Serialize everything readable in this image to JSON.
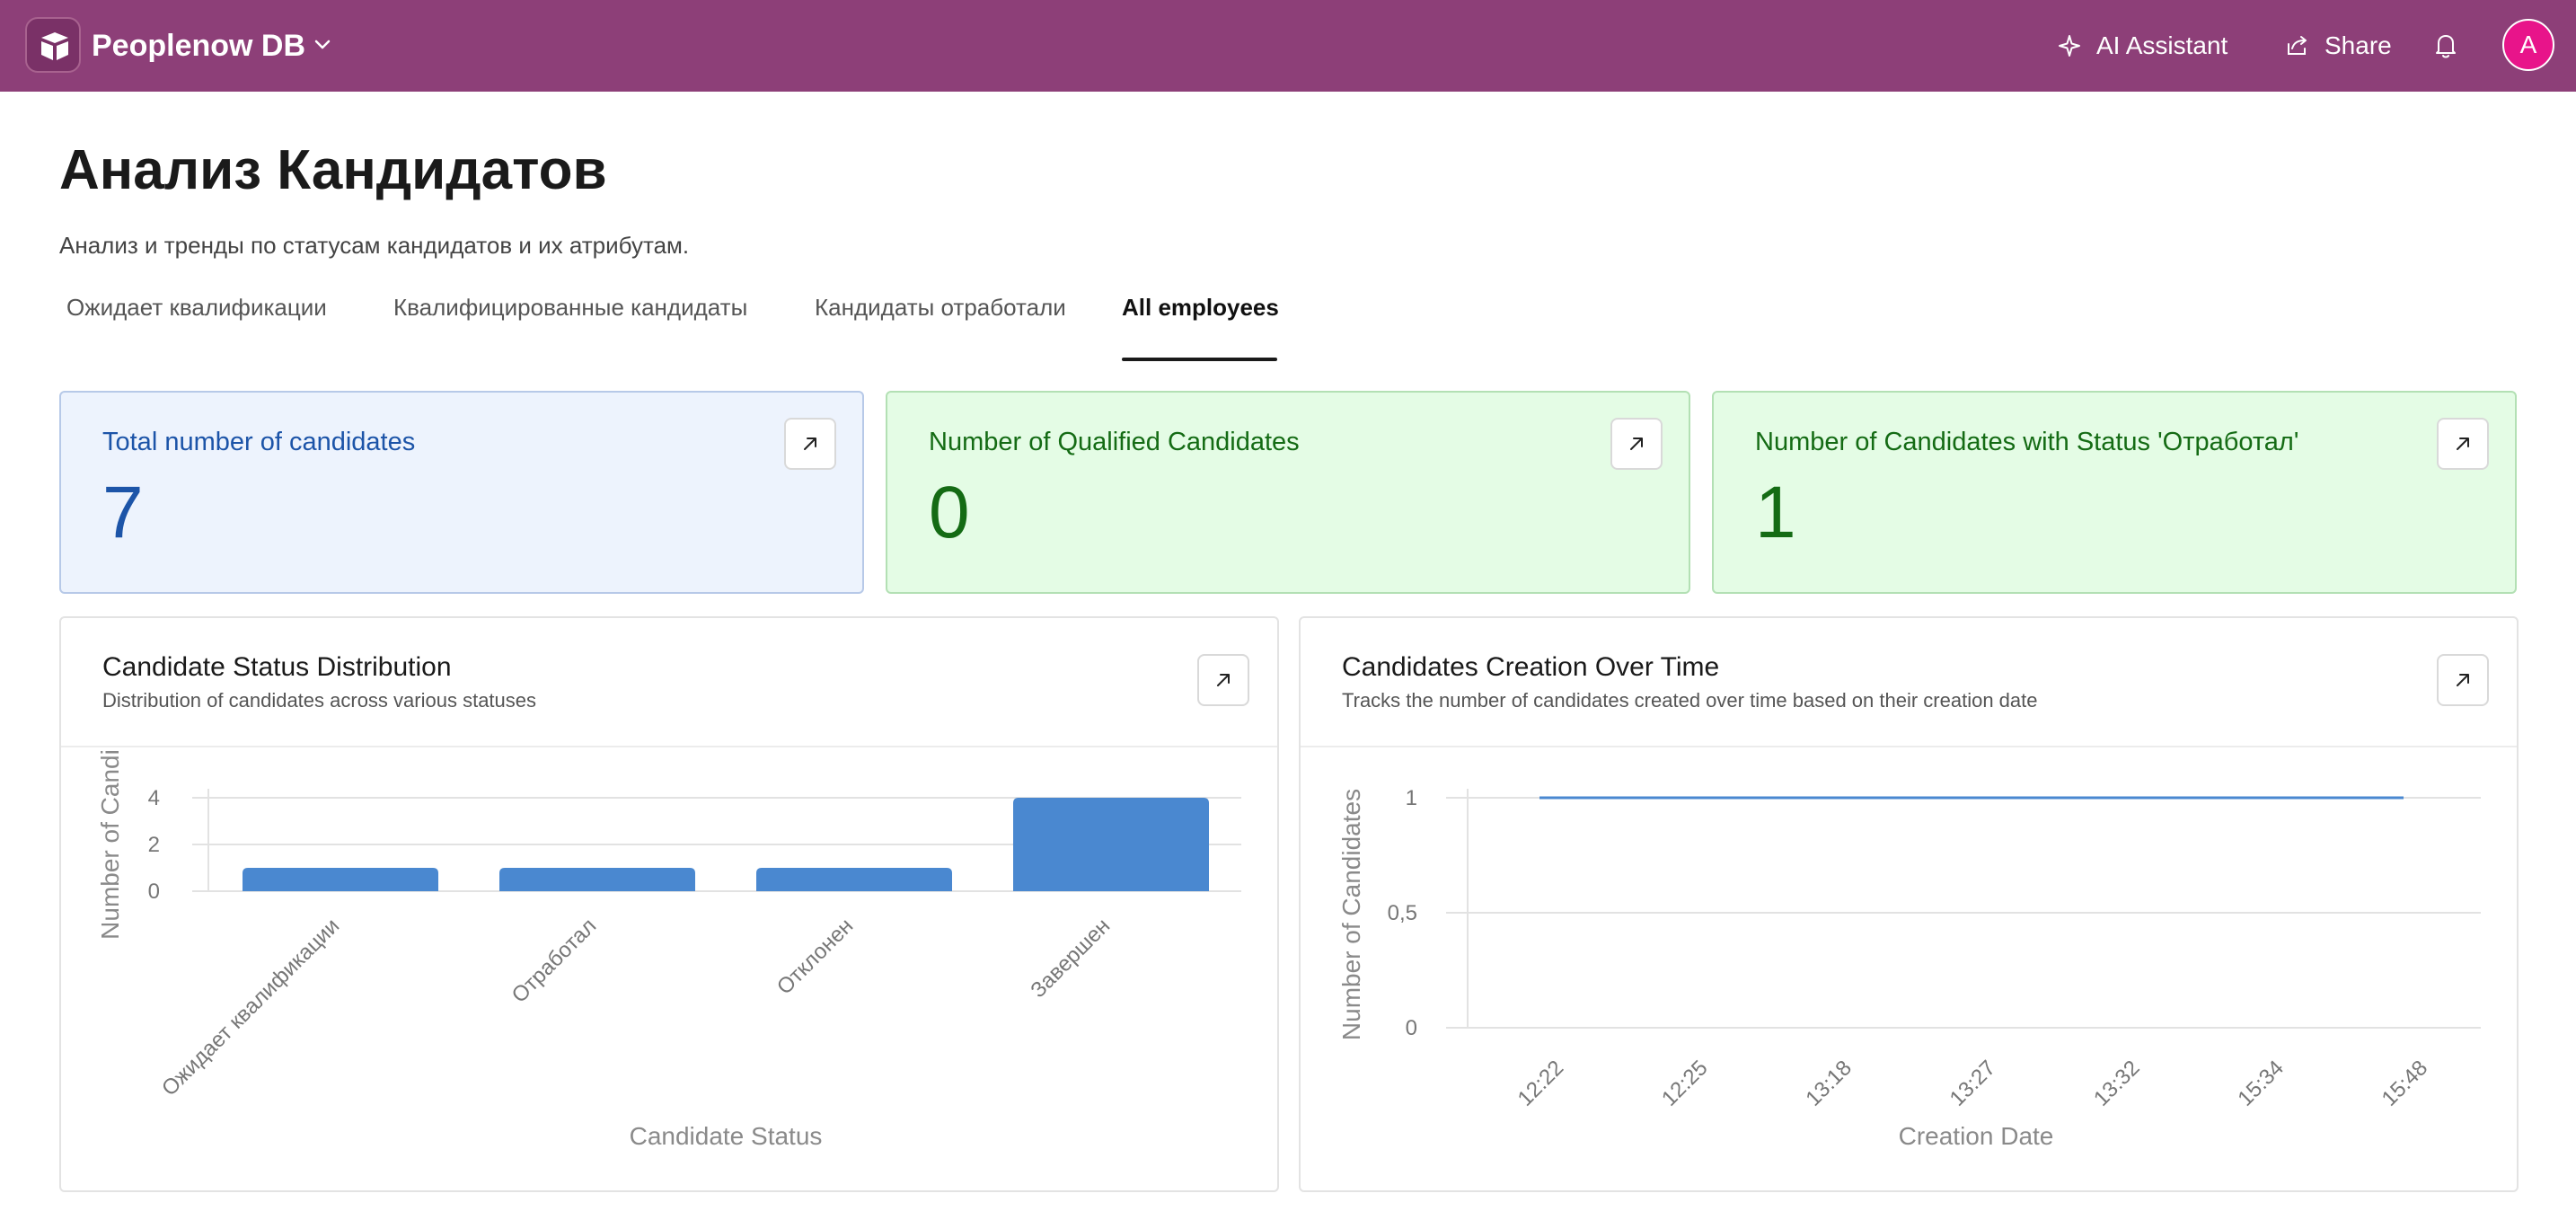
{
  "app": {
    "name": "Peoplenow DB",
    "ai_label": "AI Assistant",
    "share_label": "Share",
    "avatar_initial": "A",
    "brand_color": "#8d3f78",
    "avatar_color": "#e8148a"
  },
  "page": {
    "title": "Анализ Кандидатов",
    "subtitle": "Анализ и тренды по статусам кандидатов и их атрибутам.",
    "tabs": [
      {
        "label": "Ожидает квалификации",
        "active": false
      },
      {
        "label": "Квалифицированные кандидаты",
        "active": false
      },
      {
        "label": "Кандидаты отработали",
        "active": false
      },
      {
        "label": "All employees",
        "active": true
      }
    ]
  },
  "kpis": [
    {
      "title": "Total number of candidates",
      "value": "7",
      "color": "#1c54a8"
    },
    {
      "title": "Number of Qualified Candidates",
      "value": "0",
      "color": "#146b14"
    },
    {
      "title": "Number of Candidates with Status 'Отработал'",
      "value": "1",
      "color": "#146b14"
    }
  ],
  "charts": [
    {
      "title": "Candidate Status Distribution",
      "description": "Distribution of candidates across various statuses"
    },
    {
      "title": "Candidates Creation Over Time",
      "description": "Tracks the number of candidates created over time based on their creation date"
    }
  ],
  "chart_data": [
    {
      "type": "bar",
      "categories": [
        "Ожидает квалификации",
        "Отработал",
        "Отклонен",
        "Завершен"
      ],
      "values": [
        1,
        1,
        1,
        4
      ],
      "xlabel": "Candidate Status",
      "ylabel": "Number of Candi",
      "yticks": [
        "0",
        "2",
        "4"
      ],
      "ylim": [
        0,
        4
      ],
      "color": "#4a88d0",
      "grid": true
    },
    {
      "type": "line",
      "x": [
        "12:22",
        "12:25",
        "13:18",
        "13:27",
        "13:32",
        "15:34",
        "15:48"
      ],
      "values": [
        1,
        1,
        1,
        1,
        1,
        1,
        1
      ],
      "xlabel": "Creation Date",
      "ylabel": "Number of Candidates",
      "yticks": [
        "0",
        "0,5",
        "1"
      ],
      "ylim": [
        0,
        1
      ],
      "color": "#4a88d0",
      "grid": true
    }
  ]
}
